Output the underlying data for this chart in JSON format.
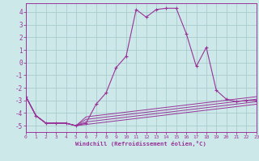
{
  "background_color": "#cce8e8",
  "grid_color": "#aacccc",
  "line_color": "#993399",
  "xlabel": "Windchill (Refroidissement éolien,°C)",
  "xlim": [
    0,
    23
  ],
  "ylim": [
    -5.5,
    4.7
  ],
  "yticks": [
    -5,
    -4,
    -3,
    -2,
    -1,
    0,
    1,
    2,
    3,
    4
  ],
  "xticks": [
    0,
    1,
    2,
    3,
    4,
    5,
    6,
    7,
    8,
    9,
    10,
    11,
    12,
    13,
    14,
    15,
    16,
    17,
    18,
    19,
    20,
    21,
    22,
    23
  ],
  "main_line_x": [
    0,
    1,
    2,
    3,
    4,
    5,
    6,
    7,
    8,
    9,
    10,
    11,
    12,
    13,
    14,
    15,
    16,
    17,
    18,
    19,
    20,
    21,
    22,
    23
  ],
  "main_line_y": [
    -2.7,
    -4.2,
    -4.8,
    -4.8,
    -4.8,
    -5.0,
    -4.8,
    -3.3,
    -2.4,
    -0.4,
    0.5,
    4.2,
    3.6,
    4.2,
    4.3,
    4.3,
    2.3,
    -0.3,
    1.2,
    -2.2,
    -2.9,
    -3.1,
    -3.0,
    -3.0
  ],
  "fan_lines": [
    {
      "x": [
        0,
        1,
        2,
        3,
        4,
        5,
        6,
        23
      ],
      "y": [
        -2.7,
        -4.2,
        -4.8,
        -4.8,
        -4.8,
        -5.0,
        -4.9,
        -3.3
      ]
    },
    {
      "x": [
        0,
        1,
        2,
        3,
        4,
        5,
        6,
        23
      ],
      "y": [
        -2.7,
        -4.2,
        -4.8,
        -4.8,
        -4.8,
        -5.0,
        -4.7,
        -3.1
      ]
    },
    {
      "x": [
        0,
        1,
        2,
        3,
        4,
        5,
        6,
        23
      ],
      "y": [
        -2.7,
        -4.2,
        -4.8,
        -4.8,
        -4.8,
        -5.0,
        -4.5,
        -2.9
      ]
    },
    {
      "x": [
        0,
        1,
        2,
        3,
        4,
        5,
        6,
        23
      ],
      "y": [
        -2.7,
        -4.2,
        -4.8,
        -4.8,
        -4.8,
        -5.0,
        -4.3,
        -2.7
      ]
    }
  ]
}
